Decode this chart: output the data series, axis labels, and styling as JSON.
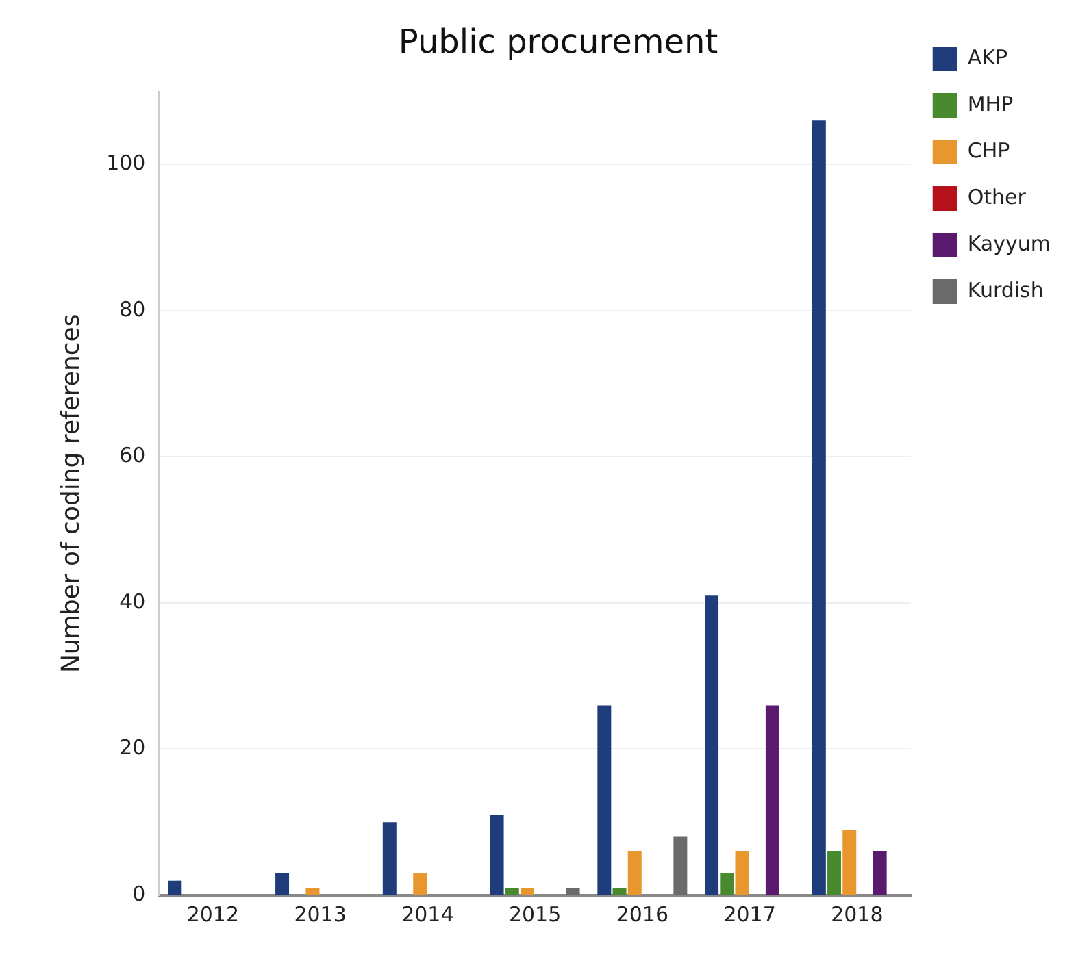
{
  "chart_data": {
    "type": "bar",
    "title": "Public procurement",
    "ylabel": "Number of coding references",
    "categories": [
      "2012",
      "2013",
      "2014",
      "2015",
      "2016",
      "2017",
      "2018"
    ],
    "series": [
      {
        "name": "AKP",
        "color": "#1f3d7a",
        "values": [
          2,
          3,
          10,
          11,
          26,
          41,
          106
        ]
      },
      {
        "name": "MHP",
        "color": "#4a8a2f",
        "values": [
          0,
          0,
          0,
          1,
          1,
          3,
          6
        ]
      },
      {
        "name": "CHP",
        "color": "#e8962e",
        "values": [
          0,
          1,
          3,
          1,
          6,
          6,
          9
        ]
      },
      {
        "name": "Other",
        "color": "#b5121b",
        "values": [
          0,
          0,
          0,
          0,
          0,
          0,
          0
        ]
      },
      {
        "name": "Kayyum",
        "color": "#5a1a6e",
        "values": [
          0,
          0,
          0,
          0,
          0,
          26,
          6
        ]
      },
      {
        "name": "Kurdish",
        "color": "#6b6b6b",
        "values": [
          0,
          0,
          0,
          1,
          8,
          0,
          0
        ]
      }
    ],
    "ylim": [
      0,
      110
    ],
    "yticks": [
      0,
      20,
      40,
      60,
      80,
      100
    ],
    "grid": "y",
    "legend": "top right"
  }
}
